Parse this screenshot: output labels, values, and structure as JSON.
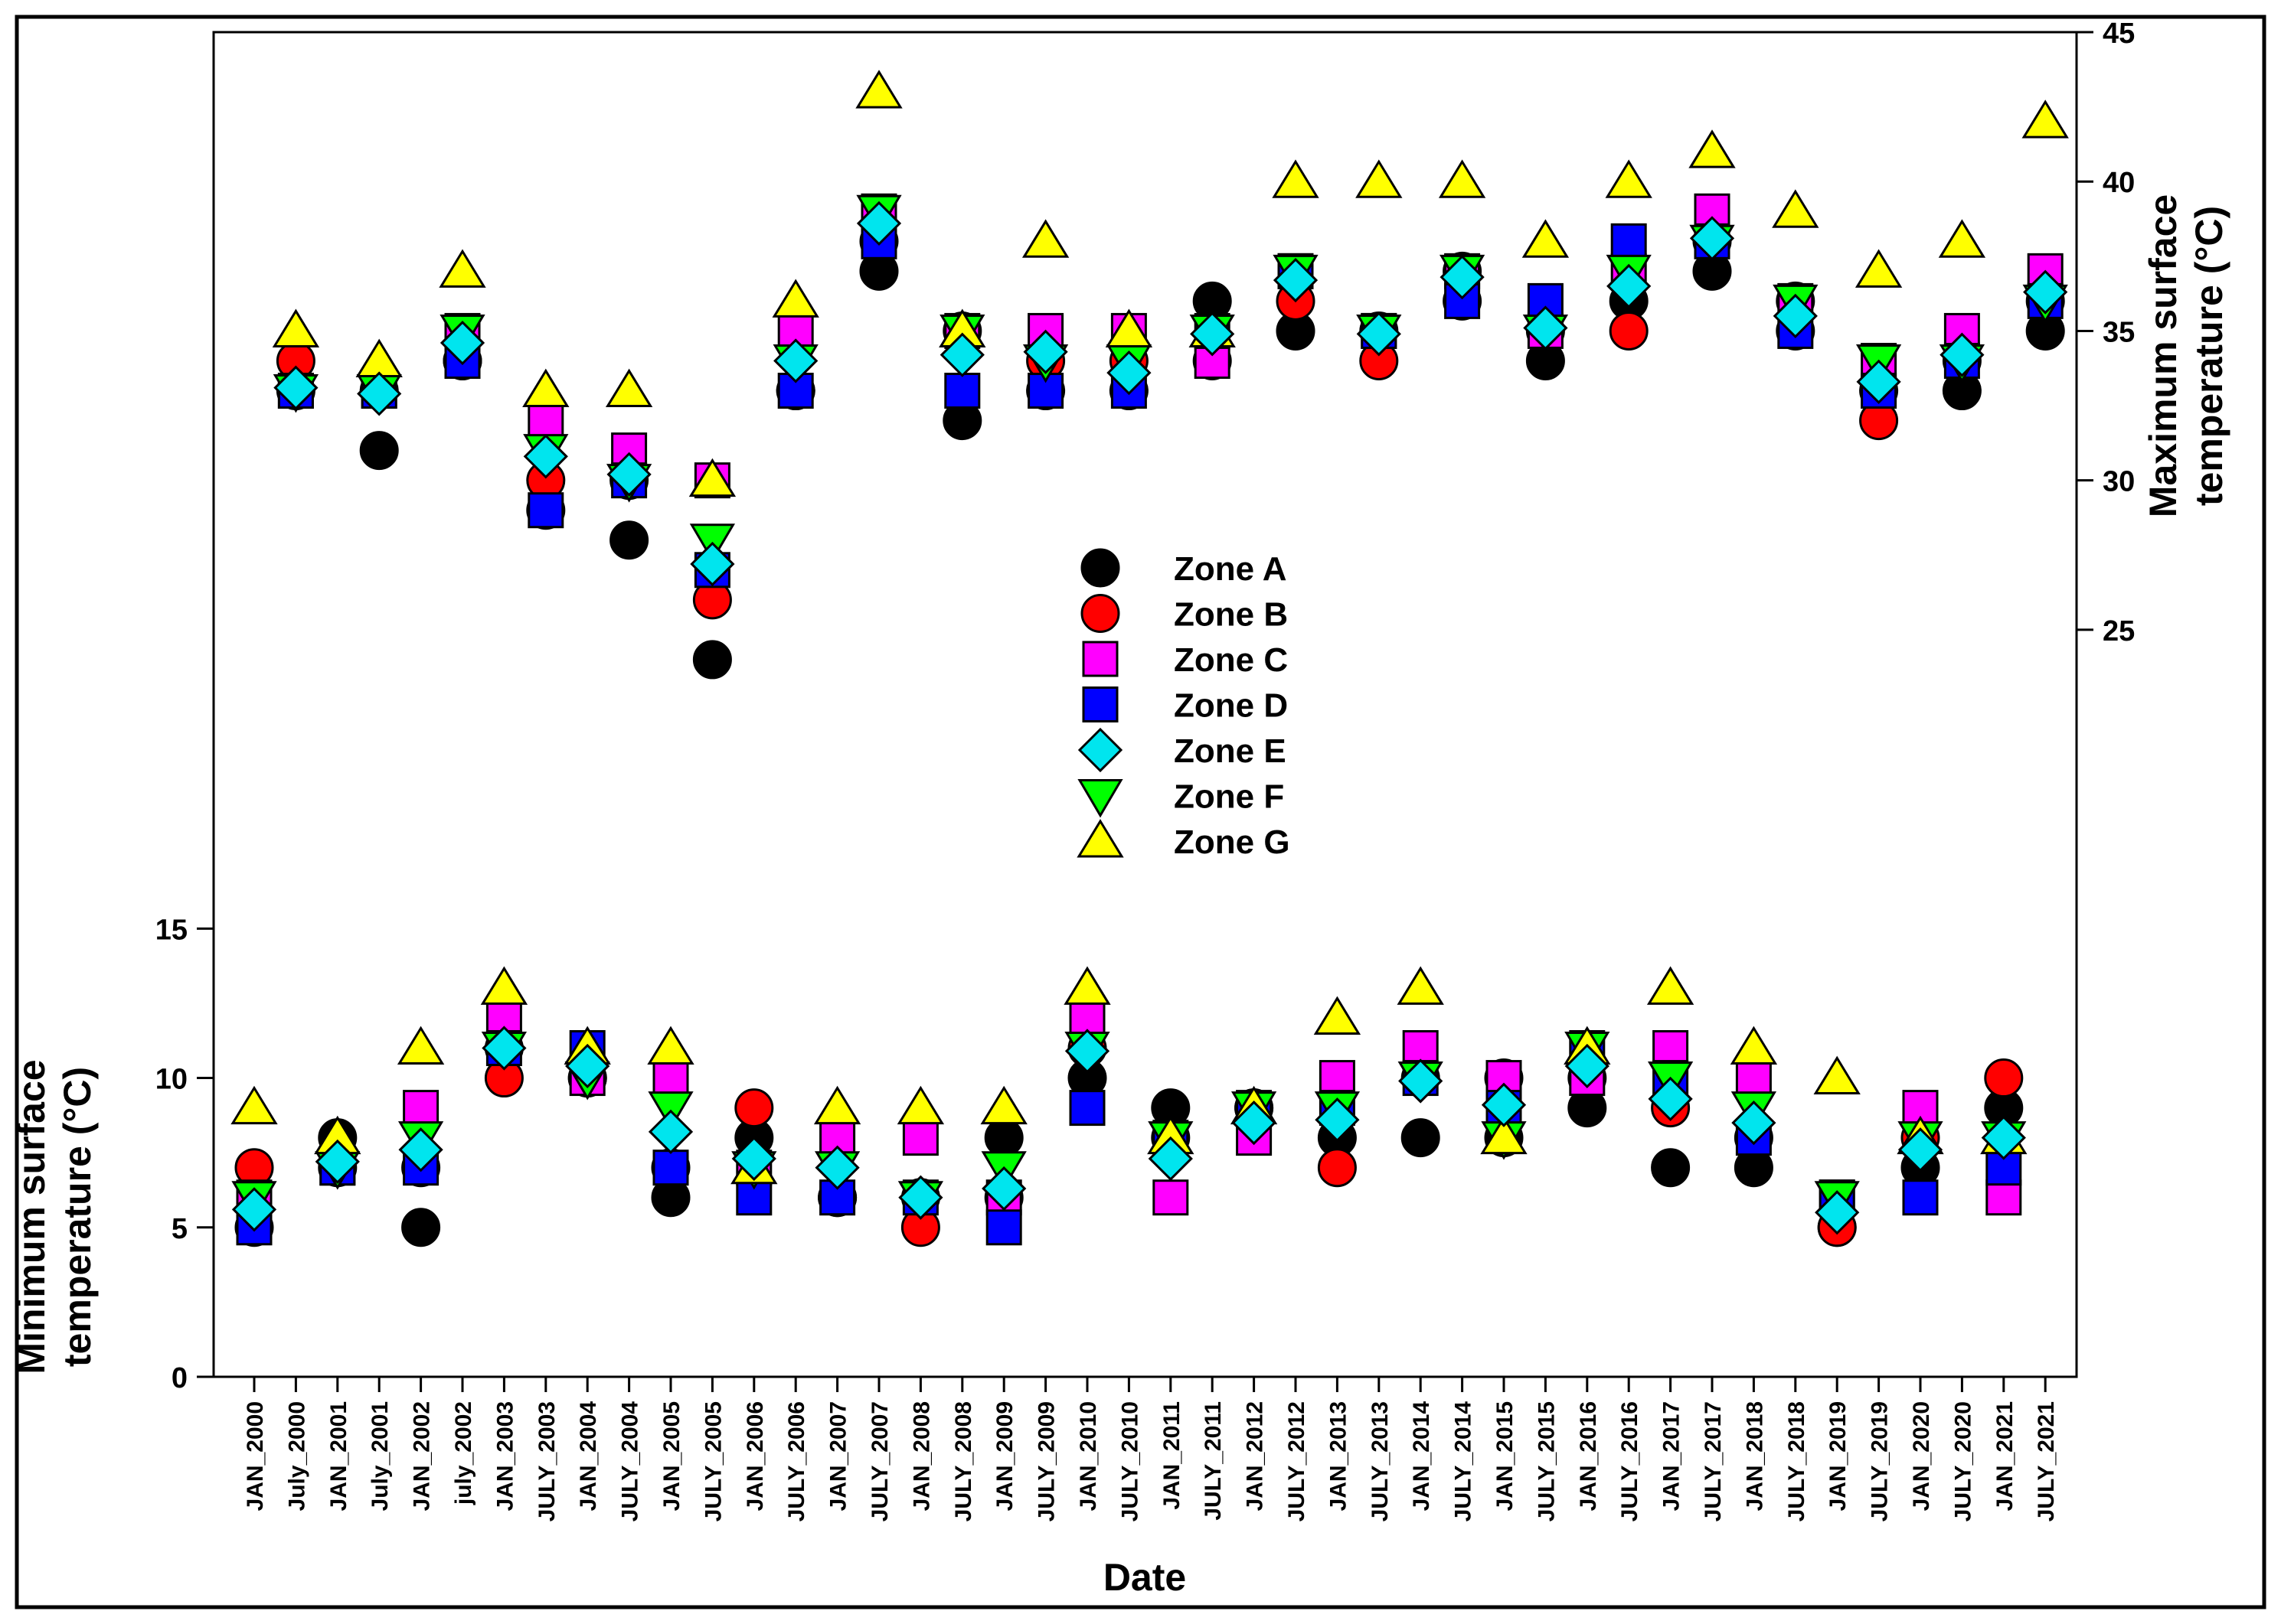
{
  "chart_data": {
    "type": "scatter",
    "xlabel": "Date",
    "ylabel_left": [
      "Minimum surface",
      "temperature (°C)"
    ],
    "ylabel_right": [
      "Maximum surface",
      "temperature (°C)"
    ],
    "categories": [
      "JAN_2000",
      "July_2000",
      "JAN_2001",
      "July_2001",
      "JAN_2002",
      "july_2002",
      "JAN_2003",
      "JULY_2003",
      "JAN_2004",
      "JULY_2004",
      "JAN_2005",
      "JULY_2005",
      "JAN_2006",
      "JULY_2006",
      "JAN_2007",
      "JULY_2007",
      "JAN_2008",
      "JULY_2008",
      "JAN_2009",
      "JULY_2009",
      "JAN_2010",
      "JULY_2010",
      "JAN_2011",
      "JULY_2011",
      "JAN_2012",
      "JULY_2012",
      "JAN_2013",
      "JULY_2013",
      "JAN_2014",
      "JULY_2014",
      "JAN_2015",
      "JULY_2015",
      "JAN_2016",
      "JULY_2016",
      "JAN_2017",
      "JULY_2017",
      "JAN_2018",
      "JULY_2018",
      "JAN_2019",
      "JULY_2019",
      "JAN_2020",
      "JULY_2020",
      "JAN_2021",
      "JULY_2021"
    ],
    "left_axis": {
      "range": [
        0,
        45
      ],
      "ticks": [
        "0",
        "5",
        "10",
        "15"
      ]
    },
    "right_axis": {
      "range": [
        0,
        45
      ],
      "ticks": [
        "25",
        "30",
        "35",
        "40",
        "45"
      ]
    },
    "legend_position": "center",
    "legend": [
      "Zone A",
      "Zone B",
      "Zone C",
      "Zone D",
      "Zone E",
      "Zone F",
      "Zone G"
    ],
    "series": [
      {
        "name": "Zone A",
        "marker": "circle",
        "color": "#000000",
        "values": [
          5,
          33,
          8,
          31,
          5,
          34,
          11,
          29,
          10,
          28,
          6,
          24,
          8,
          33,
          6,
          37,
          6,
          32,
          8,
          33,
          10,
          33,
          9,
          36,
          9,
          35,
          8,
          35,
          8,
          36,
          8,
          34,
          9,
          36,
          7,
          37,
          7,
          35,
          5,
          33,
          7,
          33,
          9,
          35
        ]
      },
      {
        "name": "Zone B",
        "marker": "circle",
        "color": "#ff0000",
        "values": [
          7,
          34,
          7,
          33,
          7,
          34,
          10,
          30,
          10,
          30,
          7,
          26,
          9,
          33,
          6,
          38,
          5,
          35,
          6,
          34,
          11,
          34,
          8,
          34,
          9,
          36,
          7,
          34,
          10,
          37,
          10,
          35,
          10,
          35,
          9,
          38,
          8,
          36,
          5,
          32,
          8,
          34,
          10,
          36
        ]
      },
      {
        "name": "Zone C",
        "marker": "square",
        "color": "#ff00ff",
        "values": [
          6,
          33,
          7,
          33,
          9,
          35,
          12,
          32,
          10,
          31,
          10,
          30,
          7,
          35,
          8,
          39,
          8,
          35,
          6,
          35,
          12,
          35,
          6,
          34,
          8,
          37,
          10,
          35,
          11,
          37,
          10,
          35,
          10,
          37,
          11,
          39,
          10,
          36,
          6,
          34,
          9,
          35,
          6,
          37
        ]
      },
      {
        "name": "Zone D",
        "marker": "square",
        "color": "#0000ff",
        "values": [
          5,
          33,
          7,
          33,
          7,
          34,
          11,
          29,
          11,
          30,
          7,
          27,
          6,
          33,
          6,
          38,
          6,
          33,
          5,
          33,
          9,
          33,
          8,
          35,
          9,
          37,
          9,
          35,
          10,
          36,
          9,
          36,
          11,
          38,
          10,
          38,
          8,
          35,
          6,
          33,
          6,
          34,
          7,
          36
        ]
      },
      {
        "name": "Zone E",
        "marker": "diamond",
        "color": "#00e5ee",
        "values": [
          5.6,
          33.1,
          7.2,
          32.9,
          7.6,
          34.6,
          11,
          30.8,
          10.4,
          30.2,
          8.2,
          27.2,
          7.3,
          34,
          7,
          38.6,
          6,
          34.2,
          6.3,
          34.3,
          10.9,
          33.6,
          7.3,
          34.9,
          8.5,
          36.7,
          8.6,
          34.9,
          9.9,
          36.8,
          9.1,
          35.1,
          10.4,
          36.5,
          9.3,
          38.1,
          8.5,
          35.5,
          5.5,
          33.3,
          7.6,
          34.2,
          8,
          36.3
        ]
      },
      {
        "name": "Zone F",
        "marker": "triangle-down",
        "color": "#00ff00",
        "values": [
          6,
          33,
          7,
          33,
          8,
          35,
          11,
          31,
          10,
          30,
          9,
          28,
          7,
          34,
          7,
          39,
          6,
          35,
          7,
          34,
          11,
          34,
          8,
          35,
          9,
          37,
          9,
          35,
          10,
          37,
          8,
          35,
          11,
          37,
          10,
          38,
          9,
          36,
          6,
          34,
          8,
          34,
          8,
          36
        ]
      },
      {
        "name": "Zone G",
        "marker": "triangle-up",
        "color": "#ffff00",
        "values": [
          9,
          35,
          8,
          34,
          11,
          37,
          13,
          33,
          11,
          33,
          11,
          30,
          7,
          36,
          9,
          43,
          9,
          35,
          9,
          38,
          13,
          35,
          8,
          35,
          9,
          40,
          12,
          40,
          13,
          40,
          8,
          38,
          11,
          40,
          13,
          41,
          11,
          39,
          10,
          37,
          8,
          38,
          8,
          42
        ]
      }
    ]
  }
}
